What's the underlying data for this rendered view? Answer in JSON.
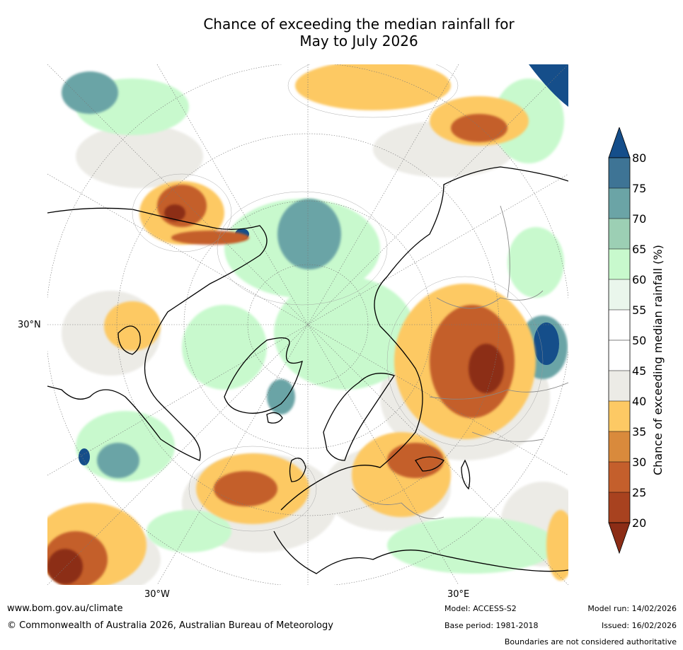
{
  "title": {
    "line1": "Chance of exceeding the median rainfall for",
    "line2": "May to July 2026"
  },
  "map": {
    "projection": "north-polar-stereographic",
    "lat_labels": [
      "30°N"
    ],
    "lon_labels": [
      "30°W",
      "30°E"
    ]
  },
  "colorbar": {
    "label": "Chance of exceeding median rainfall (%)",
    "ticks": [
      "20",
      "25",
      "30",
      "35",
      "40",
      "45",
      "50",
      "55",
      "60",
      "65",
      "70",
      "75",
      "80"
    ],
    "colors": {
      "below_20": "#8c2d16",
      "20_25": "#a8421f",
      "25_30": "#c45f2c",
      "30_35": "#d98a3c",
      "35_40": "#fdc964",
      "40_45": "#ecebe6",
      "45_50": "#ffffff",
      "50_55": "#ffffff",
      "55_60": "#eaf6ec",
      "60_65": "#c8f9cd",
      "65_70": "#9ccfb4",
      "70_75": "#6ba4a6",
      "75_80": "#3e7495",
      "above_80": "#154e8a"
    }
  },
  "footer": {
    "url": "www.bom.gov.au/climate",
    "copyright": "© Commonwealth of Australia 2026, Australian Bureau of Meteorology",
    "model": "Model: ACCESS-S2",
    "base_period": "Base period: 1981-2018",
    "model_run": "Model run: 14/02/2026",
    "issued": "Issued: 16/02/2026",
    "disclaimer": "Boundaries are not considered authoritative"
  }
}
